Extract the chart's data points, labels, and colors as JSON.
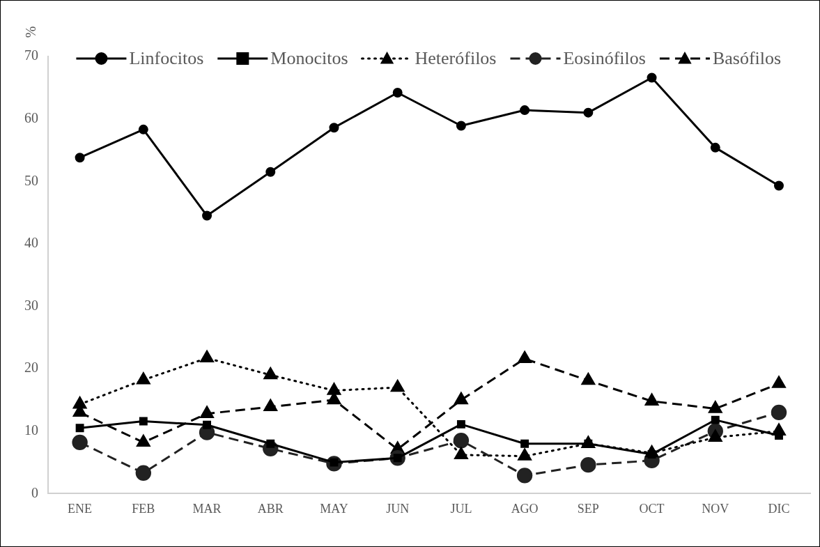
{
  "chart_data": {
    "type": "line",
    "ylabel": "%",
    "categories": [
      "ENE",
      "FEB",
      "MAR",
      "ABR",
      "MAY",
      "JUN",
      "JUL",
      "AGO",
      "SEP",
      "OCT",
      "NOV",
      "DIC"
    ],
    "series": [
      {
        "name": "Linfocitos",
        "color": "#000000",
        "marker": "circle",
        "line_style": "solid",
        "values": [
          53.8,
          58.3,
          44.5,
          51.5,
          58.6,
          64.2,
          58.9,
          61.4,
          61.0,
          66.6,
          55.4,
          49.3
        ]
      },
      {
        "name": "Monocitos",
        "color": "#000000",
        "marker": "square",
        "line_style": "solid",
        "values": [
          10.5,
          11.6,
          11.0,
          8.0,
          5.0,
          5.7,
          11.1,
          8.0,
          8.0,
          6.3,
          11.8,
          9.3
        ]
      },
      {
        "name": "Heterófilos",
        "color": "#000000",
        "marker": "triangle",
        "line_style": "dotted",
        "values": [
          14.3,
          18.2,
          21.7,
          19.0,
          16.5,
          17.0,
          6.2,
          6.0,
          8.0,
          6.5,
          9.0,
          10.0
        ]
      },
      {
        "name": "Eosinófilos",
        "color": "#222222",
        "marker": "circle",
        "line_style": "dashed",
        "values": [
          8.2,
          3.3,
          9.8,
          7.2,
          4.8,
          5.7,
          8.5,
          2.9,
          4.6,
          5.3,
          10.0,
          13.0
        ]
      },
      {
        "name": "Basófilos",
        "color": "#000000",
        "marker": "triangle",
        "line_style": "dashed",
        "values": [
          13.0,
          8.2,
          12.8,
          13.9,
          15.0,
          7.1,
          15.0,
          21.6,
          18.1,
          14.8,
          13.6,
          17.6
        ]
      }
    ],
    "ylim": [
      0,
      70
    ],
    "yticks": [
      0,
      10,
      20,
      30,
      40,
      50,
      60,
      70
    ],
    "grid": false,
    "legend": "top"
  }
}
